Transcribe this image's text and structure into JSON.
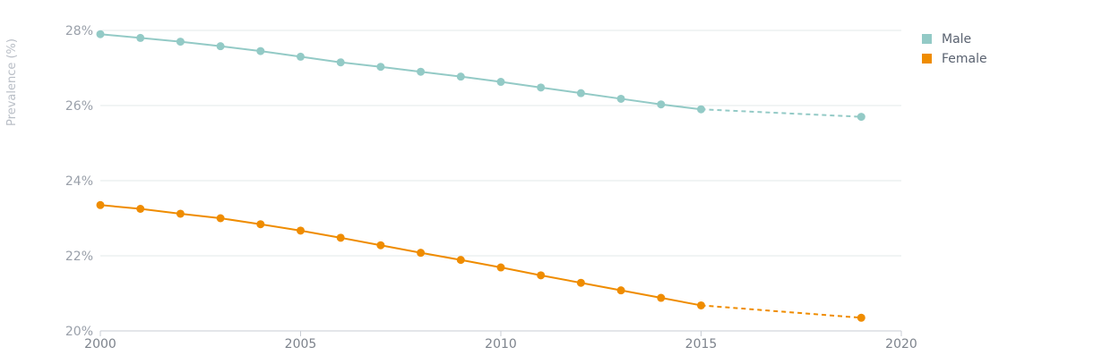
{
  "chart_data": {
    "type": "line",
    "title": "",
    "xlabel": "",
    "ylabel": "Prevalence (%)",
    "xlim": [
      2000,
      2020
    ],
    "ylim": [
      20,
      28
    ],
    "x_ticks": [
      "2000",
      "2005",
      "2010",
      "2015",
      "2020"
    ],
    "y_ticks": [
      "20%",
      "22%",
      "24%",
      "26%",
      "28%"
    ],
    "grid": true,
    "legend_position": "top-right",
    "series": [
      {
        "name": "Male",
        "color": "#93cac6",
        "x": [
          2000,
          2001,
          2002,
          2003,
          2004,
          2005,
          2006,
          2007,
          2008,
          2009,
          2010,
          2011,
          2012,
          2013,
          2014,
          2015,
          2019
        ],
        "values": [
          27.9,
          27.8,
          27.7,
          27.58,
          27.45,
          27.3,
          27.15,
          27.03,
          26.9,
          26.77,
          26.63,
          26.48,
          26.33,
          26.18,
          26.03,
          25.9,
          25.7
        ],
        "dashed_after_x": 2015
      },
      {
        "name": "Female",
        "color": "#ef8c00",
        "x": [
          2000,
          2001,
          2002,
          2003,
          2004,
          2005,
          2006,
          2007,
          2008,
          2009,
          2010,
          2011,
          2012,
          2013,
          2014,
          2015,
          2019
        ],
        "values": [
          23.35,
          23.25,
          23.12,
          23.0,
          22.84,
          22.67,
          22.48,
          22.28,
          22.08,
          21.89,
          21.69,
          21.48,
          21.28,
          21.08,
          20.88,
          20.68,
          20.35
        ],
        "dashed_after_x": 2015
      }
    ]
  }
}
